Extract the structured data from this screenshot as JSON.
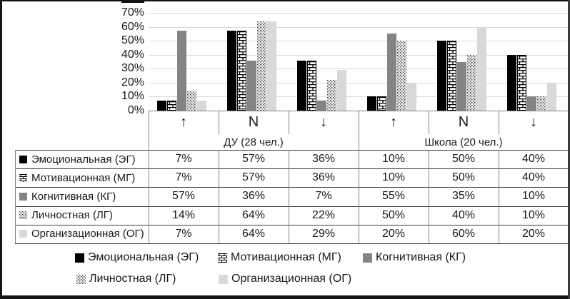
{
  "figure": {
    "background": "#ffffff",
    "border_color": "#141414"
  },
  "chart_data": {
    "type": "bar",
    "title": "",
    "xlabel": "",
    "ylabel": "",
    "ylim": [
      0,
      70
    ],
    "ytick_step": 10,
    "ytick_labels": [
      "0%",
      "10%",
      "20%",
      "30%",
      "40%",
      "50%",
      "60%",
      "70%"
    ],
    "grid": true,
    "gridline_color": "#d9d9d9",
    "legend_position": "bottom",
    "value_suffix": "%",
    "categories": [
      "↑",
      "N",
      "↓",
      "↑",
      "N",
      "↓"
    ],
    "category_groups": [
      {
        "label": "ДУ (28 чел.)",
        "span": 3
      },
      {
        "label": "Школа (20 чел.)",
        "span": 3
      }
    ],
    "series": [
      {
        "name": "Эмоциональная (ЭГ)",
        "style": "solid",
        "color": "#000000",
        "values": [
          7,
          57,
          36,
          10,
          50,
          40
        ]
      },
      {
        "name": "Мотивационная (МГ)",
        "style": "brick",
        "color": "#000000",
        "values": [
          7,
          57,
          36,
          10,
          50,
          40
        ]
      },
      {
        "name": "Когнитивная (КГ)",
        "style": "solid",
        "color": "#848484",
        "values": [
          57,
          36,
          7,
          55,
          35,
          10
        ]
      },
      {
        "name": "Личностная (ЛГ)",
        "style": "dots",
        "color": "#3a3a3a",
        "values": [
          14,
          64,
          22,
          50,
          40,
          10
        ]
      },
      {
        "name": "Организационная (ОГ)",
        "style": "solid",
        "color": "#d9d9d9",
        "values": [
          7,
          64,
          29,
          20,
          60,
          20
        ]
      }
    ]
  },
  "legend": {
    "rows": [
      [
        0,
        1,
        2
      ],
      [
        3,
        4
      ]
    ]
  }
}
